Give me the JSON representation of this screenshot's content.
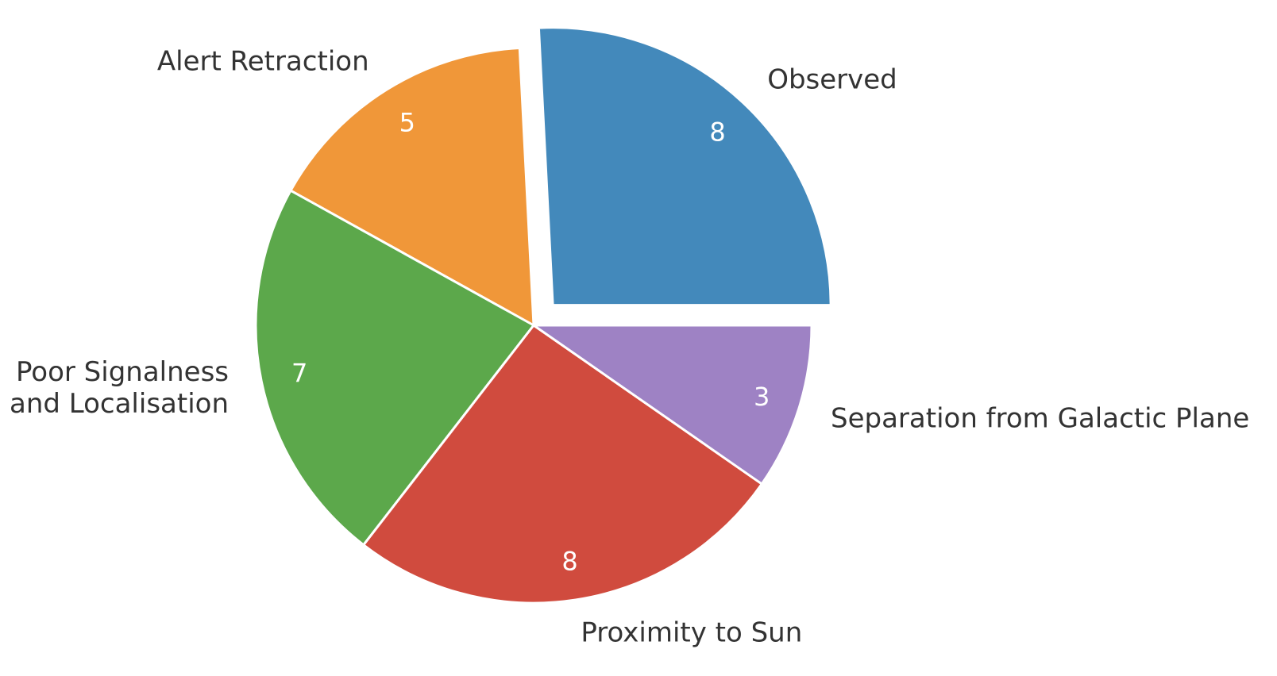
{
  "chart_data": {
    "type": "pie",
    "categories": [
      "Observed",
      "Alert Retraction",
      "Poor Signalness\nand Localisation",
      "Proximity to Sun",
      "Separation from Galactic Plane"
    ],
    "values": [
      8,
      5,
      7,
      8,
      3
    ],
    "value_labels": [
      "8",
      "5",
      "7",
      "8",
      "3"
    ],
    "colors": [
      "#4389bb",
      "#f09739",
      "#5ca84b",
      "#d04b3e",
      "#9e82c4"
    ],
    "exploded": [
      "Observed"
    ],
    "start_angle_deg": 0,
    "direction": "counterclockwise"
  }
}
